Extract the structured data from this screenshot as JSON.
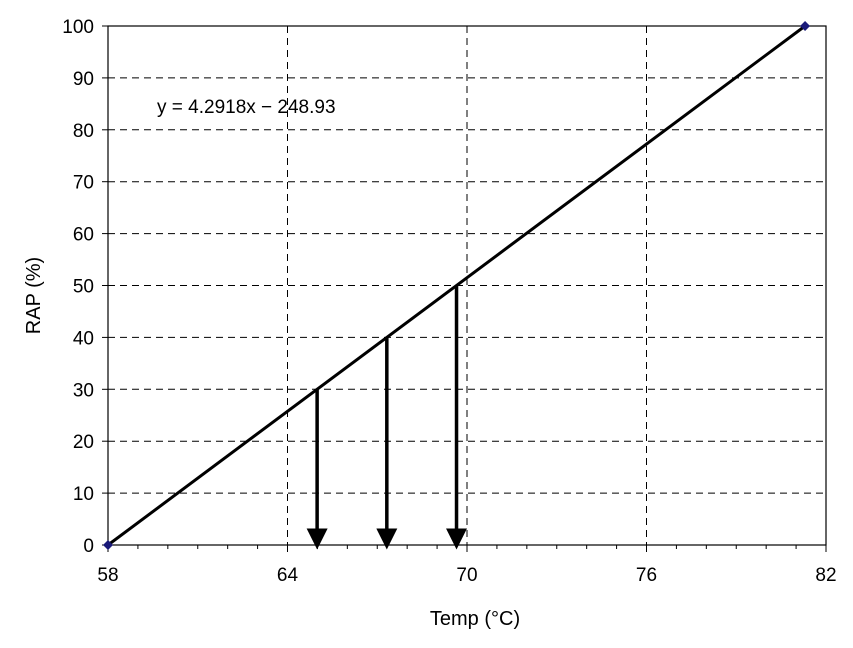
{
  "chart_data": {
    "type": "line",
    "xlabel": "Temp (°C)",
    "ylabel": "RAP (%)",
    "xlim": [
      58,
      82
    ],
    "ylim": [
      0,
      100
    ],
    "xticks": [
      58,
      64,
      70,
      76,
      82
    ],
    "yticks": [
      0,
      10,
      20,
      30,
      40,
      50,
      60,
      70,
      80,
      90,
      100
    ],
    "grid": true,
    "series": [
      {
        "x": [
          58.0,
          81.3
        ],
        "y": [
          0,
          100
        ],
        "markers": true
      }
    ],
    "annotations": [
      {
        "text": "y = 4.2918x − 248.93",
        "anchor": "upper-left"
      }
    ],
    "drop_arrows": [
      {
        "x": 64.99,
        "y_from": 30,
        "y_to": 0
      },
      {
        "x": 67.32,
        "y_from": 40,
        "y_to": 0
      },
      {
        "x": 69.65,
        "y_from": 50,
        "y_to": 0
      }
    ],
    "colors": {
      "line": "#000000",
      "marker": "#1a1a7a",
      "grid": "#000000"
    }
  }
}
